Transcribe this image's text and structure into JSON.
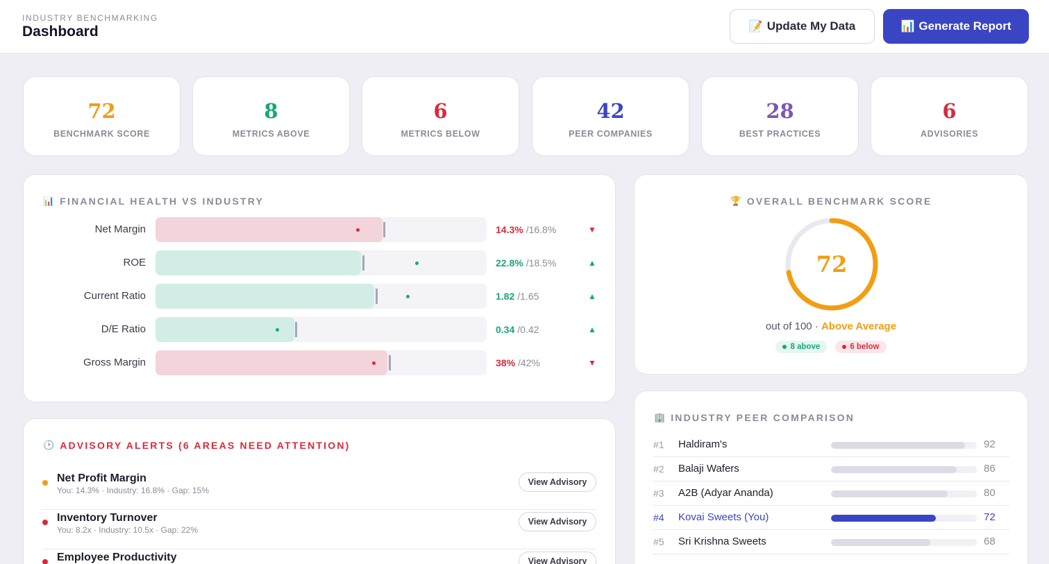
{
  "header": {
    "eyebrow": "INDUSTRY BENCHMARKING",
    "title": "Dashboard",
    "update_label": "Update My Data",
    "update_icon": "📝",
    "report_label": "Generate Report",
    "report_icon": "📊"
  },
  "stats": [
    {
      "value": "72",
      "label": "BENCHMARK SCORE",
      "color": "#f29d12"
    },
    {
      "value": "8",
      "label": "METRICS ABOVE",
      "color": "#17a77a"
    },
    {
      "value": "6",
      "label": "METRICS BELOW",
      "color": "#d92a3a"
    },
    {
      "value": "42",
      "label": "PEER COMPANIES",
      "color": "#3a45c4"
    },
    {
      "value": "28",
      "label": "BEST PRACTICES",
      "color": "#7d57b3"
    },
    {
      "value": "6",
      "label": "ADVISORIES",
      "color": "#d92a3a"
    }
  ],
  "financial": {
    "title": "FINANCIAL HEALTH VS INDUSTRY",
    "icon": "📊",
    "rows": [
      {
        "label": "Net Margin",
        "you": "14.3%",
        "industry": "/16.8%",
        "status": "below",
        "arrow": "▼",
        "fill_pct": 68.5,
        "marker_pct": 68.8,
        "dot_pct": 60.5
      },
      {
        "label": "ROE",
        "you": "22.8%",
        "industry": "/18.5%",
        "status": "above",
        "arrow": "▲",
        "fill_pct": 62.0,
        "marker_pct": 62.4,
        "dot_pct": 78.5
      },
      {
        "label": "Current Ratio",
        "you": "1.82",
        "industry": "/1.65",
        "status": "above",
        "arrow": "▲",
        "fill_pct": 66.0,
        "marker_pct": 66.4,
        "dot_pct": 75.7
      },
      {
        "label": "D/E Ratio",
        "you": "0.34",
        "industry": "/0.42",
        "status": "above",
        "arrow": "▲",
        "fill_pct": 42.0,
        "marker_pct": 42.2,
        "dot_pct": 36.3
      },
      {
        "label": "Gross Margin",
        "you": "38%",
        "industry": "/42%",
        "status": "below",
        "arrow": "▼",
        "fill_pct": 70.0,
        "marker_pct": 70.4,
        "dot_pct": 65.5
      }
    ]
  },
  "overall": {
    "title": "OVERALL BENCHMARK SCORE",
    "icon": "🏆",
    "score": "72",
    "score_fraction": 0.72,
    "out_of": "out of 100 · ",
    "level": "Above Average",
    "above_label": "8 above",
    "below_label": "6 below"
  },
  "advisory": {
    "title": "ADVISORY ALERTS (6 AREAS NEED ATTENTION)",
    "icon": "🕑",
    "button_label": "View Advisory",
    "items": [
      {
        "name": "Net Profit Margin",
        "detail": "You: 14.3% · Industry: 16.8% · Gap: 15%",
        "color": "#f29d12"
      },
      {
        "name": "Inventory Turnover",
        "detail": "You: 8.2x · Industry: 10.5x · Gap: 22%",
        "color": "#d92a3a"
      },
      {
        "name": "Employee Productivity",
        "detail": "",
        "color": "#d92a3a"
      }
    ]
  },
  "peers": {
    "title": "INDUSTRY PEER COMPARISON",
    "icon": "🏢",
    "rows": [
      {
        "rank": "#1",
        "name": "Haldiram's",
        "score": "92",
        "value": 92,
        "you": false
      },
      {
        "rank": "#2",
        "name": "Balaji Wafers",
        "score": "86",
        "value": 86,
        "you": false
      },
      {
        "rank": "#3",
        "name": "A2B (Adyar Ananda)",
        "score": "80",
        "value": 80,
        "you": false
      },
      {
        "rank": "#4",
        "name": "Kovai Sweets (You)",
        "score": "72",
        "value": 72,
        "you": true
      },
      {
        "rank": "#5",
        "name": "Sri Krishna Sweets",
        "score": "68",
        "value": 68,
        "you": false
      }
    ]
  }
}
